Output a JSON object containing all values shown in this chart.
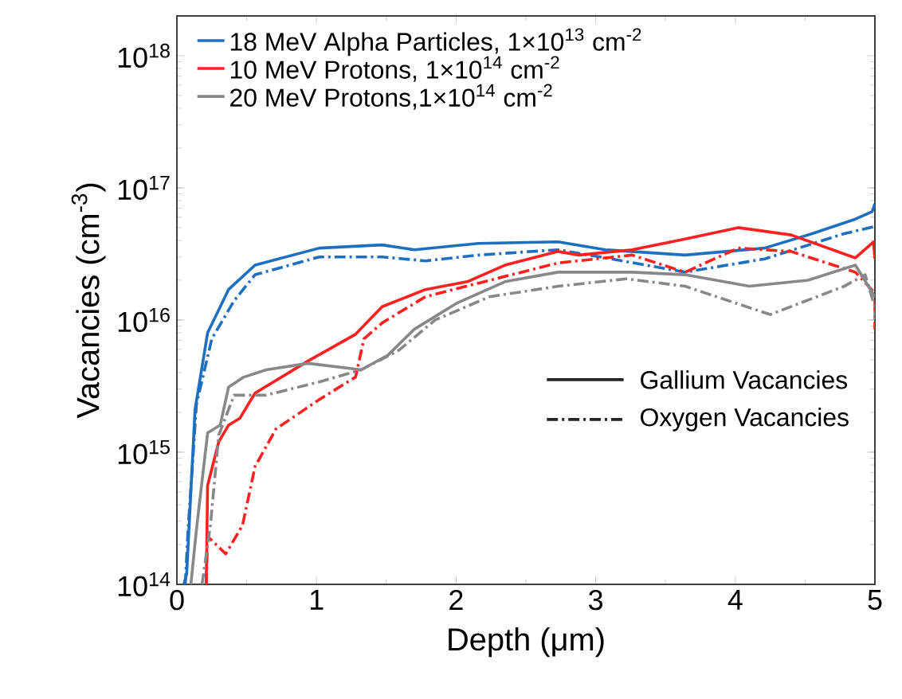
{
  "chart_data": {
    "type": "line",
    "xlabel": "Depth (μm)",
    "ylabel": "Vacancies (cm$^{-3}$)",
    "log": "y",
    "xlim": [
      0,
      5
    ],
    "ylim": [
      100000000000000.0,
      2e+18
    ],
    "xticks": [
      0,
      1,
      2,
      3,
      4,
      5
    ],
    "yticks": [
      {
        "value": 100000000000000.0,
        "label": "10$^{14}$"
      },
      {
        "value": 1000000000000000.0,
        "label": "10$^{15}$"
      },
      {
        "value": 1e+16,
        "label": "10$^{16}$"
      },
      {
        "value": 1e+17,
        "label": "10$^{17}$"
      },
      {
        "value": 1e+18,
        "label": "10$^{18}$"
      }
    ],
    "legend": "top left",
    "annotations": [
      "Gallium Vacancies",
      "Oxygen Vacancies"
    ],
    "series": [
      {
        "name": "18 MeV Alpha Particles, 1×10$^{13}$ cm$^{-2}$",
        "color": "#1e6fbf",
        "line_style": "solid",
        "x": [
          0.05,
          0.07,
          0.13,
          0.22,
          0.37,
          0.56,
          1.02,
          1.47,
          1.7,
          2.16,
          2.73,
          3.07,
          3.64,
          4.21,
          4.55,
          4.86,
          4.98,
          5.0
        ],
        "values": [
          100000000000000.0,
          120000000000000.0,
          2100000000000000.0,
          8000000000000000.0,
          1.7e+16,
          2.6e+16,
          3.5e+16,
          3.7e+16,
          3.4e+16,
          3.8e+16,
          3.9e+16,
          3.4e+16,
          3.1e+16,
          3.5e+16,
          4.5e+16,
          5.8e+16,
          6.6e+16,
          7.6e+16
        ]
      },
      {
        "color": "#1e6fbf",
        "line_style": "dashdot",
        "x": [
          0.06,
          0.08,
          0.14,
          0.25,
          0.41,
          0.56,
          1.02,
          1.47,
          1.78,
          2.16,
          2.73,
          3.07,
          3.64,
          4.21,
          4.78,
          5.0
        ],
        "values": [
          100000000000000.0,
          260000000000000.0,
          2300000000000000.0,
          7200000000000000.0,
          1.4e+16,
          2.2e+16,
          3e+16,
          3e+16,
          2.8e+16,
          3.1e+16,
          3.4e+16,
          2.95e+16,
          2.3e+16,
          2.9e+16,
          4.5e+16,
          5.1e+16
        ]
      },
      {
        "name": "10 MeV Protons, 1×10$^{14}$ cm$^{-2}$",
        "color": "#ff2020",
        "line_style": "solid",
        "x": [
          0.21,
          0.22,
          0.3,
          0.37,
          0.45,
          0.56,
          0.94,
          1.28,
          1.47,
          1.78,
          2.08,
          2.35,
          2.73,
          2.88,
          3.26,
          3.64,
          4.02,
          4.4,
          4.86,
          4.99,
          5.0
        ],
        "values": [
          100000000000000.0,
          560000000000000.0,
          1200000000000000.0,
          1600000000000000.0,
          1800000000000000.0,
          2800000000000000.0,
          4900000000000000.0,
          7800000000000000.0,
          1.26e+16,
          1.7e+16,
          1.95e+16,
          2.6e+16,
          3.3e+16,
          3.1e+16,
          3.4e+16,
          4.1e+16,
          5e+16,
          4.4e+16,
          2.95e+16,
          3.9e+16,
          2.9e+16
        ]
      },
      {
        "color": "#ff2020",
        "line_style": "dashdot",
        "x": [
          0.21,
          0.22,
          0.35,
          0.47,
          0.56,
          0.71,
          1.02,
          1.28,
          1.34,
          1.47,
          1.78,
          2.16,
          2.73,
          3.26,
          3.64,
          4.02,
          4.4,
          4.86,
          5.0,
          5.0
        ],
        "values": [
          100000000000000.0,
          230000000000000.0,
          170000000000000.0,
          280000000000000.0,
          780000000000000.0,
          1500000000000000.0,
          2500000000000000.0,
          3700000000000000.0,
          7200000000000000.0,
          9500000000000000.0,
          1.5e+16,
          1.9e+16,
          2.7e+16,
          3.1e+16,
          2.3e+16,
          3.5e+16,
          3.3e+16,
          2.3e+16,
          1.6e+16,
          8500000000000000.0
        ]
      },
      {
        "name": "20 MeV Protons,1×10$^{14}$ cm$^{-2}$",
        "color": "#888888",
        "line_style": "solid",
        "x": [
          0.1,
          0.14,
          0.22,
          0.31,
          0.37,
          0.48,
          0.64,
          0.94,
          1.32,
          1.51,
          1.7,
          2.01,
          2.35,
          2.73,
          3.26,
          3.64,
          4.1,
          4.52,
          4.86,
          5.0
        ],
        "values": [
          100000000000000.0,
          260000000000000.0,
          1400000000000000.0,
          1600000000000000.0,
          3100000000000000.0,
          3700000000000000.0,
          4200000000000000.0,
          4700000000000000.0,
          4200000000000000.0,
          5400000000000000.0,
          8500000000000000.0,
          1.35e+16,
          1.95e+16,
          2.3e+16,
          2.3e+16,
          2.2e+16,
          1.8e+16,
          2e+16,
          2.6e+16,
          1.5e+16
        ]
      },
      {
        "color": "#888888",
        "line_style": "dashdot",
        "x": [
          0.18,
          0.24,
          0.3,
          0.41,
          0.64,
          1.02,
          1.32,
          1.59,
          1.85,
          2.24,
          2.73,
          3.22,
          3.64,
          4.25,
          4.78,
          4.93,
          5.0,
          5.0
        ],
        "values": [
          100000000000000.0,
          280000000000000.0,
          1350000000000000.0,
          2700000000000000.0,
          2700000000000000.0,
          3400000000000000.0,
          4200000000000000.0,
          5900000000000000.0,
          1e+16,
          1.5e+16,
          1.8e+16,
          2.05e+16,
          1.8e+16,
          1.1e+16,
          1.8e+16,
          2.2e+16,
          1.25e+16,
          1e+16
        ]
      }
    ]
  }
}
